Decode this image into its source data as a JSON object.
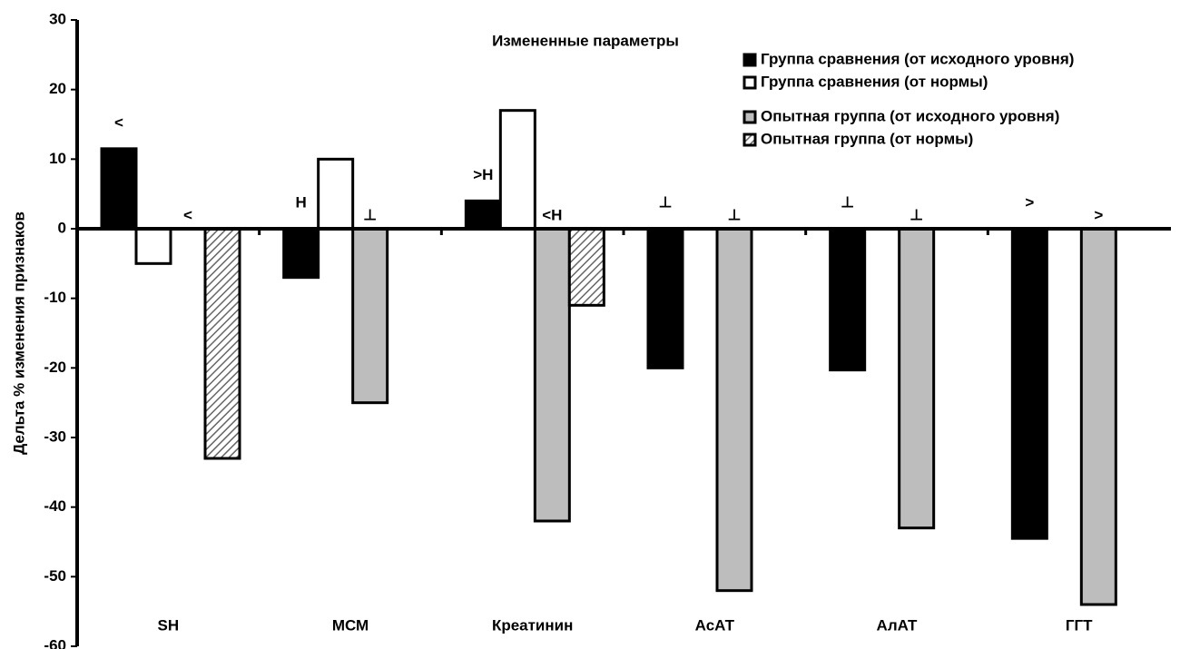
{
  "chart_data": {
    "type": "bar",
    "title": "Измененные параметры",
    "y_label": "Дельта % изменения признаков",
    "categories": [
      "SH",
      "МСМ",
      "Креатинин",
      "АсАТ",
      "АлАТ",
      "ГГТ"
    ],
    "series": [
      {
        "name": "Группа сравнения (от исходного уровня)",
        "color": "#000000",
        "values": [
          11.5,
          -7,
          4,
          -20,
          -20.3,
          -44.5
        ],
        "markers": [
          "<",
          "Н",
          ">Н",
          "⊥",
          "⊥",
          ">"
        ]
      },
      {
        "name": "Группа сравнения (от нормы)",
        "color": "#ffffff",
        "values": [
          -5,
          10,
          17,
          null,
          null,
          null
        ]
      },
      {
        "name": "Опытная группа (от исходного уровня)",
        "color": "#bdbdbd",
        "values": [
          null,
          -25,
          -42,
          -52,
          -43,
          -54
        ],
        "markers": [
          "<",
          "⊥",
          "<Н",
          "⊥",
          "⊥",
          ">"
        ]
      },
      {
        "name": "Опытная группа (от нормы)",
        "color": "#ffffff",
        "hatch": true,
        "values": [
          -33,
          null,
          -11,
          null,
          null,
          null
        ]
      }
    ],
    "ylim": [
      -60,
      30
    ],
    "yticks": [
      -60,
      -50,
      -40,
      -30,
      -20,
      -10,
      0,
      10,
      20,
      30
    ]
  }
}
